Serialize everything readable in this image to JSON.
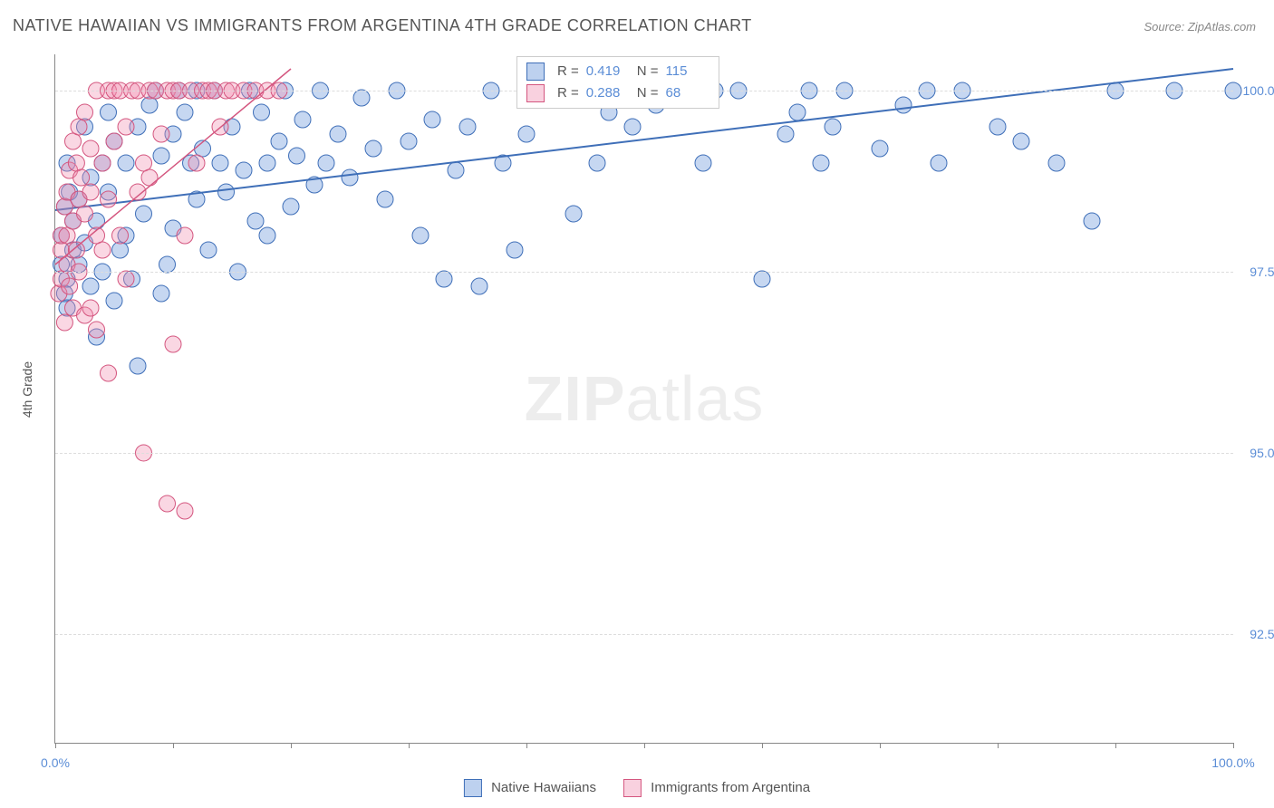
{
  "title": "NATIVE HAWAIIAN VS IMMIGRANTS FROM ARGENTINA 4TH GRADE CORRELATION CHART",
  "source": "Source: ZipAtlas.com",
  "yaxis_label": "4th Grade",
  "watermark_a": "ZIP",
  "watermark_b": "atlas",
  "chart": {
    "type": "scatter",
    "xlim": [
      0,
      100
    ],
    "ylim": [
      91,
      100.5
    ],
    "yticks": [
      {
        "v": 92.5,
        "label": "92.5%"
      },
      {
        "v": 95.0,
        "label": "95.0%"
      },
      {
        "v": 97.5,
        "label": "97.5%"
      },
      {
        "v": 100.0,
        "label": "100.0%"
      }
    ],
    "xticks": [
      0,
      10,
      20,
      30,
      40,
      50,
      60,
      70,
      80,
      90,
      100
    ],
    "xlabel_min": "0.0%",
    "xlabel_max": "100.0%",
    "background_color": "#ffffff",
    "grid_color": "#dddddd",
    "marker_radius": 9,
    "marker_fill_opacity": 0.35,
    "series": [
      {
        "name": "Native Hawaiians",
        "color": "#5b8dd6",
        "stroke": "#3f6fb8",
        "R": "0.419",
        "N": "115",
        "trend": {
          "x1": 0,
          "y1": 98.35,
          "x2": 100,
          "y2": 100.3,
          "width": 2
        },
        "points": [
          [
            0.5,
            97.6
          ],
          [
            0.5,
            98.0
          ],
          [
            0.8,
            98.4
          ],
          [
            0.8,
            97.2
          ],
          [
            1.0,
            97.0
          ],
          [
            1.0,
            99.0
          ],
          [
            1.0,
            97.4
          ],
          [
            1.2,
            98.6
          ],
          [
            1.5,
            97.8
          ],
          [
            1.5,
            98.2
          ],
          [
            2.0,
            98.5
          ],
          [
            2.0,
            97.6
          ],
          [
            2.5,
            97.9
          ],
          [
            2.5,
            99.5
          ],
          [
            3.0,
            97.3
          ],
          [
            3.0,
            98.8
          ],
          [
            3.5,
            96.6
          ],
          [
            3.5,
            98.2
          ],
          [
            4.0,
            99.0
          ],
          [
            4.0,
            97.5
          ],
          [
            4.5,
            98.6
          ],
          [
            4.5,
            99.7
          ],
          [
            5.0,
            99.3
          ],
          [
            5.0,
            97.1
          ],
          [
            5.5,
            97.8
          ],
          [
            6.0,
            99.0
          ],
          [
            6.0,
            98.0
          ],
          [
            6.5,
            97.4
          ],
          [
            7.0,
            99.5
          ],
          [
            7.0,
            96.2
          ],
          [
            7.5,
            98.3
          ],
          [
            8.0,
            99.8
          ],
          [
            8.5,
            100.0
          ],
          [
            9.0,
            99.1
          ],
          [
            9.0,
            97.2
          ],
          [
            9.5,
            97.6
          ],
          [
            10.0,
            99.4
          ],
          [
            10.0,
            98.1
          ],
          [
            10.5,
            100.0
          ],
          [
            11.0,
            99.7
          ],
          [
            11.5,
            99.0
          ],
          [
            12.0,
            100.0
          ],
          [
            12.0,
            98.5
          ],
          [
            12.5,
            99.2
          ],
          [
            13.0,
            97.8
          ],
          [
            13.5,
            100.0
          ],
          [
            14.0,
            99.0
          ],
          [
            14.5,
            98.6
          ],
          [
            15.0,
            99.5
          ],
          [
            15.5,
            97.5
          ],
          [
            16.0,
            98.9
          ],
          [
            16.5,
            100.0
          ],
          [
            17.0,
            98.2
          ],
          [
            17.5,
            99.7
          ],
          [
            18.0,
            99.0
          ],
          [
            18.0,
            98.0
          ],
          [
            19.0,
            99.3
          ],
          [
            19.5,
            100.0
          ],
          [
            20.0,
            98.4
          ],
          [
            20.5,
            99.1
          ],
          [
            21.0,
            99.6
          ],
          [
            22.0,
            98.7
          ],
          [
            22.5,
            100.0
          ],
          [
            23.0,
            99.0
          ],
          [
            24.0,
            99.4
          ],
          [
            25.0,
            98.8
          ],
          [
            26.0,
            99.9
          ],
          [
            27.0,
            99.2
          ],
          [
            28.0,
            98.5
          ],
          [
            29.0,
            100.0
          ],
          [
            30.0,
            99.3
          ],
          [
            31.0,
            98.0
          ],
          [
            32.0,
            99.6
          ],
          [
            33.0,
            97.4
          ],
          [
            34.0,
            98.9
          ],
          [
            35.0,
            99.5
          ],
          [
            36.0,
            97.3
          ],
          [
            37.0,
            100.0
          ],
          [
            38.0,
            99.0
          ],
          [
            39.0,
            97.8
          ],
          [
            40.0,
            99.4
          ],
          [
            42.0,
            100.0
          ],
          [
            44.0,
            98.3
          ],
          [
            45.0,
            100.0
          ],
          [
            46.0,
            99.0
          ],
          [
            47.0,
            99.7
          ],
          [
            48.0,
            100.0
          ],
          [
            49.0,
            99.5
          ],
          [
            50.0,
            100.0
          ],
          [
            51.0,
            99.8
          ],
          [
            53.0,
            100.0
          ],
          [
            55.0,
            99.0
          ],
          [
            56.0,
            100.0
          ],
          [
            58.0,
            100.0
          ],
          [
            60.0,
            97.4
          ],
          [
            62.0,
            99.4
          ],
          [
            63.0,
            99.7
          ],
          [
            64.0,
            100.0
          ],
          [
            65.0,
            99.0
          ],
          [
            66.0,
            99.5
          ],
          [
            67.0,
            100.0
          ],
          [
            70.0,
            99.2
          ],
          [
            72.0,
            99.8
          ],
          [
            74.0,
            100.0
          ],
          [
            75.0,
            99.0
          ],
          [
            77.0,
            100.0
          ],
          [
            80.0,
            99.5
          ],
          [
            82.0,
            99.3
          ],
          [
            85.0,
            99.0
          ],
          [
            88.0,
            98.2
          ],
          [
            90.0,
            100.0
          ],
          [
            95.0,
            100.0
          ],
          [
            100.0,
            100.0
          ]
        ]
      },
      {
        "name": "Immigrants from Argentina",
        "color": "#f08db0",
        "stroke": "#d4567f",
        "R": "0.288",
        "N": "68",
        "trend": {
          "x1": 0,
          "y1": 97.6,
          "x2": 20,
          "y2": 100.3,
          "width": 1.5
        },
        "points": [
          [
            0.3,
            97.2
          ],
          [
            0.5,
            97.8
          ],
          [
            0.5,
            98.0
          ],
          [
            0.5,
            97.4
          ],
          [
            0.8,
            98.4
          ],
          [
            0.8,
            96.8
          ],
          [
            1.0,
            98.0
          ],
          [
            1.0,
            98.6
          ],
          [
            1.0,
            97.6
          ],
          [
            1.2,
            98.9
          ],
          [
            1.2,
            97.3
          ],
          [
            1.5,
            99.3
          ],
          [
            1.5,
            98.2
          ],
          [
            1.5,
            97.0
          ],
          [
            1.8,
            99.0
          ],
          [
            1.8,
            97.8
          ],
          [
            2.0,
            98.5
          ],
          [
            2.0,
            99.5
          ],
          [
            2.0,
            97.5
          ],
          [
            2.2,
            98.8
          ],
          [
            2.5,
            99.7
          ],
          [
            2.5,
            98.3
          ],
          [
            2.5,
            96.9
          ],
          [
            3.0,
            97.0
          ],
          [
            3.0,
            99.2
          ],
          [
            3.0,
            98.6
          ],
          [
            3.5,
            100.0
          ],
          [
            3.5,
            98.0
          ],
          [
            3.5,
            96.7
          ],
          [
            4.0,
            99.0
          ],
          [
            4.0,
            97.8
          ],
          [
            4.5,
            100.0
          ],
          [
            4.5,
            98.5
          ],
          [
            4.5,
            96.1
          ],
          [
            5.0,
            99.3
          ],
          [
            5.0,
            100.0
          ],
          [
            5.5,
            98.0
          ],
          [
            5.5,
            100.0
          ],
          [
            6.0,
            99.5
          ],
          [
            6.0,
            97.4
          ],
          [
            6.5,
            100.0
          ],
          [
            7.0,
            98.6
          ],
          [
            7.0,
            100.0
          ],
          [
            7.5,
            99.0
          ],
          [
            7.5,
            95.0
          ],
          [
            8.0,
            100.0
          ],
          [
            8.0,
            98.8
          ],
          [
            8.5,
            100.0
          ],
          [
            9.0,
            99.4
          ],
          [
            9.5,
            100.0
          ],
          [
            9.5,
            94.3
          ],
          [
            10.0,
            100.0
          ],
          [
            10.0,
            96.5
          ],
          [
            10.5,
            100.0
          ],
          [
            11.0,
            98.0
          ],
          [
            11.0,
            94.2
          ],
          [
            11.5,
            100.0
          ],
          [
            12.0,
            99.0
          ],
          [
            12.5,
            100.0
          ],
          [
            13.0,
            100.0
          ],
          [
            13.5,
            100.0
          ],
          [
            14.0,
            99.5
          ],
          [
            14.5,
            100.0
          ],
          [
            15.0,
            100.0
          ],
          [
            16.0,
            100.0
          ],
          [
            17.0,
            100.0
          ],
          [
            18.0,
            100.0
          ],
          [
            19.0,
            100.0
          ]
        ]
      }
    ]
  },
  "legend": {
    "series1_label": "Native Hawaiians",
    "series2_label": "Immigrants from Argentina"
  },
  "stats_labels": {
    "R": "R =",
    "N": "N ="
  }
}
